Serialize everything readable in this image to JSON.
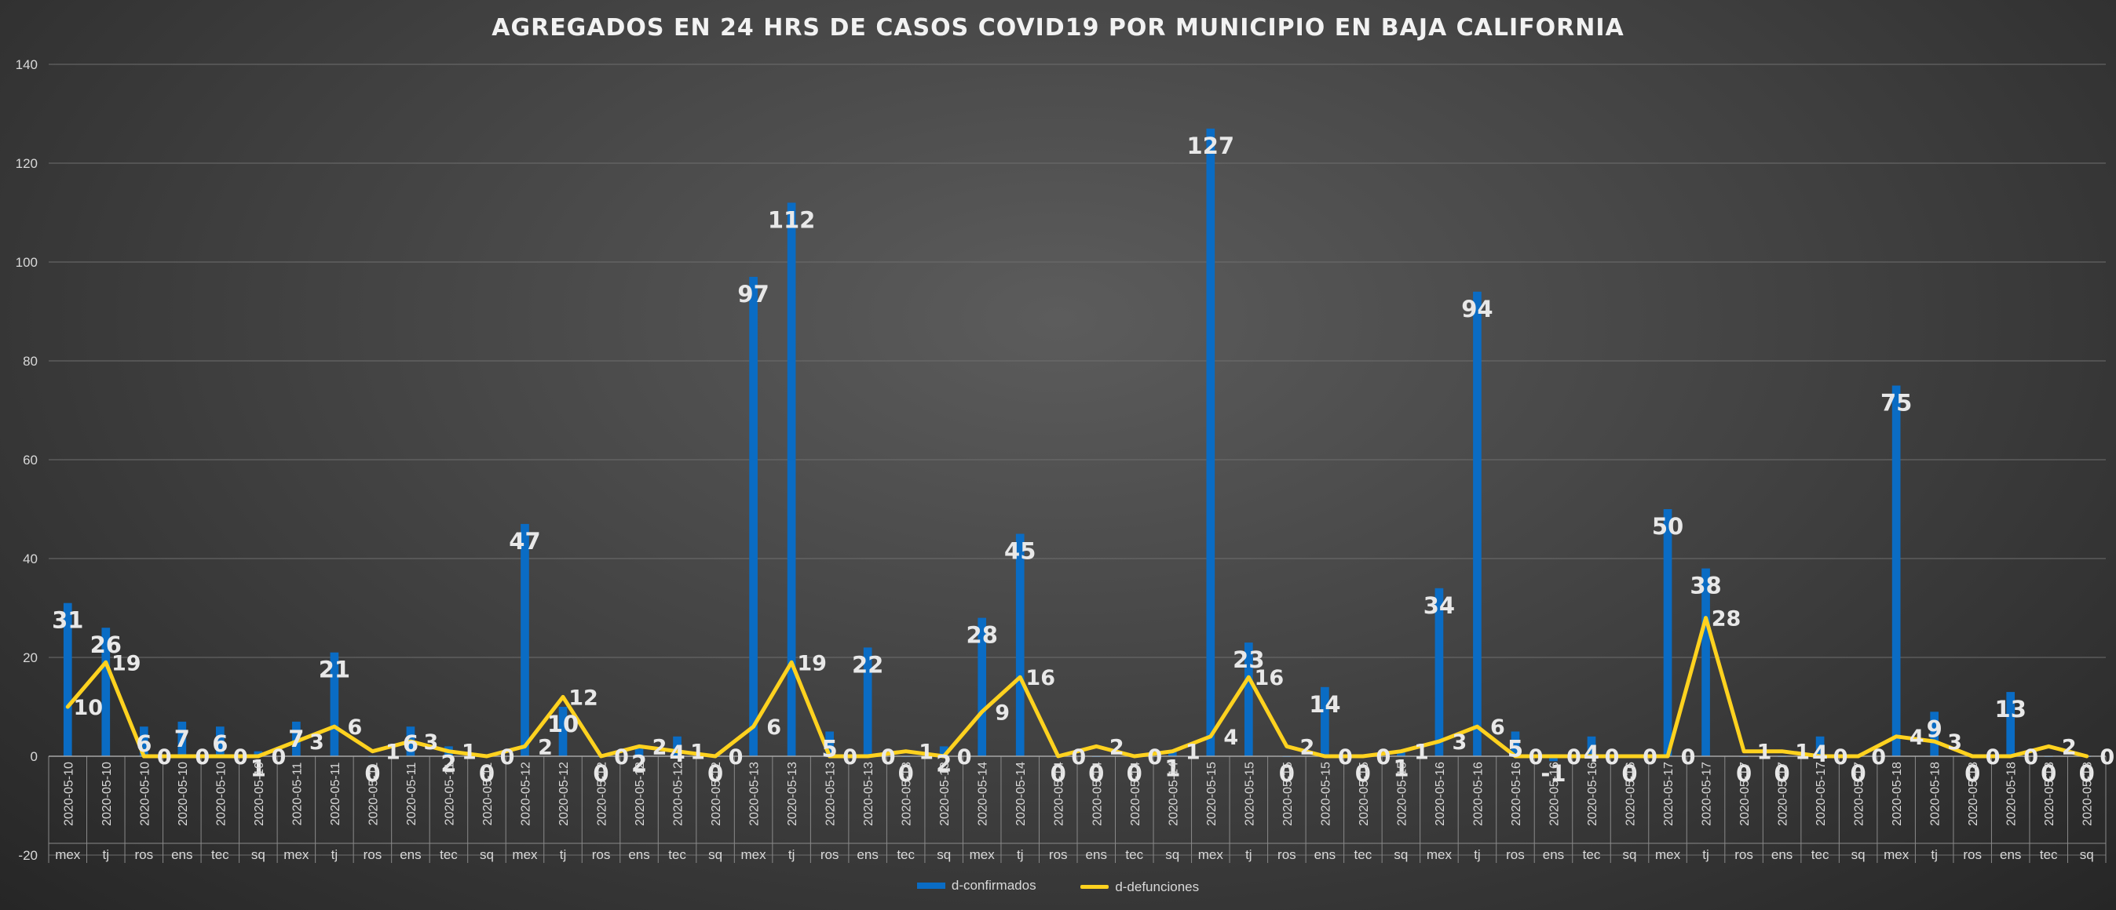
{
  "chart_data": {
    "type": "bar",
    "title": "AGREGADOS EN 24 HRS DE CASOS COVID19 POR MUNICIPIO EN BAJA CALIFORNIA",
    "xlabel": "",
    "ylabel": "",
    "ylim": [
      -20,
      140
    ],
    "yticks": [
      -20,
      0,
      20,
      40,
      60,
      80,
      100,
      120,
      140
    ],
    "grid": true,
    "legend_position": "bottom",
    "categories": [
      {
        "date": "2020-05-10",
        "mun": "mex"
      },
      {
        "date": "2020-05-10",
        "mun": "tj"
      },
      {
        "date": "2020-05-10",
        "mun": "ros"
      },
      {
        "date": "2020-05-10",
        "mun": "ens"
      },
      {
        "date": "2020-05-10",
        "mun": "tec"
      },
      {
        "date": "2020-05-10",
        "mun": "sq"
      },
      {
        "date": "2020-05-11",
        "mun": "mex"
      },
      {
        "date": "2020-05-11",
        "mun": "tj"
      },
      {
        "date": "2020-05-11",
        "mun": "ros"
      },
      {
        "date": "2020-05-11",
        "mun": "ens"
      },
      {
        "date": "2020-05-11",
        "mun": "tec"
      },
      {
        "date": "2020-05-11",
        "mun": "sq"
      },
      {
        "date": "2020-05-12",
        "mun": "mex"
      },
      {
        "date": "2020-05-12",
        "mun": "tj"
      },
      {
        "date": "2020-05-12",
        "mun": "ros"
      },
      {
        "date": "2020-05-12",
        "mun": "ens"
      },
      {
        "date": "2020-05-12",
        "mun": "tec"
      },
      {
        "date": "2020-05-12",
        "mun": "sq"
      },
      {
        "date": "2020-05-13",
        "mun": "mex"
      },
      {
        "date": "2020-05-13",
        "mun": "tj"
      },
      {
        "date": "2020-05-13",
        "mun": "ros"
      },
      {
        "date": "2020-05-13",
        "mun": "ens"
      },
      {
        "date": "2020-05-13",
        "mun": "tec"
      },
      {
        "date": "2020-05-13",
        "mun": "sq"
      },
      {
        "date": "2020-05-14",
        "mun": "mex"
      },
      {
        "date": "2020-05-14",
        "mun": "tj"
      },
      {
        "date": "2020-05-14",
        "mun": "ros"
      },
      {
        "date": "2020-05-14",
        "mun": "ens"
      },
      {
        "date": "2020-05-14",
        "mun": "tec"
      },
      {
        "date": "2020-05-14",
        "mun": "sq"
      },
      {
        "date": "2020-05-15",
        "mun": "mex"
      },
      {
        "date": "2020-05-15",
        "mun": "tj"
      },
      {
        "date": "2020-05-15",
        "mun": "ros"
      },
      {
        "date": "2020-05-15",
        "mun": "ens"
      },
      {
        "date": "2020-05-15",
        "mun": "tec"
      },
      {
        "date": "2020-05-15",
        "mun": "sq"
      },
      {
        "date": "2020-05-16",
        "mun": "mex"
      },
      {
        "date": "2020-05-16",
        "mun": "tj"
      },
      {
        "date": "2020-05-16",
        "mun": "ros"
      },
      {
        "date": "2020-05-16",
        "mun": "ens"
      },
      {
        "date": "2020-05-16",
        "mun": "tec"
      },
      {
        "date": "2020-05-16",
        "mun": "sq"
      },
      {
        "date": "2020-05-17",
        "mun": "mex"
      },
      {
        "date": "2020-05-17",
        "mun": "tj"
      },
      {
        "date": "2020-05-17",
        "mun": "ros"
      },
      {
        "date": "2020-05-17",
        "mun": "ens"
      },
      {
        "date": "2020-05-17",
        "mun": "tec"
      },
      {
        "date": "2020-05-17",
        "mun": "sq"
      },
      {
        "date": "2020-05-18",
        "mun": "mex"
      },
      {
        "date": "2020-05-18",
        "mun": "tj"
      },
      {
        "date": "2020-05-18",
        "mun": "ros"
      },
      {
        "date": "2020-05-18",
        "mun": "ens"
      },
      {
        "date": "2020-05-18",
        "mun": "tec"
      },
      {
        "date": "2020-05-18",
        "mun": "sq"
      }
    ],
    "series": [
      {
        "name": "d-confirmados",
        "type": "bar",
        "color": "#0a6cc4",
        "values": [
          31,
          26,
          6,
          7,
          6,
          1,
          7,
          21,
          0,
          6,
          2,
          0,
          47,
          10,
          0,
          2,
          4,
          0,
          97,
          112,
          5,
          22,
          0,
          2,
          28,
          45,
          0,
          0,
          0,
          1,
          127,
          23,
          0,
          14,
          0,
          1,
          34,
          94,
          5,
          -1,
          4,
          0,
          50,
          38,
          0,
          0,
          4,
          0,
          75,
          9,
          0,
          13,
          0,
          0
        ]
      },
      {
        "name": "d-defunciones",
        "type": "line",
        "color": "#ffd21f",
        "values": [
          10,
          19,
          0,
          0,
          0,
          0,
          3,
          6,
          1,
          3,
          1,
          0,
          2,
          12,
          0,
          2,
          1,
          0,
          6,
          19,
          0,
          0,
          1,
          0,
          9,
          16,
          0,
          2,
          0,
          1,
          4,
          16,
          2,
          0,
          0,
          1,
          3,
          6,
          0,
          0,
          0,
          0,
          0,
          28,
          1,
          1,
          0,
          0,
          4,
          3,
          0,
          0,
          2,
          0
        ]
      }
    ]
  }
}
